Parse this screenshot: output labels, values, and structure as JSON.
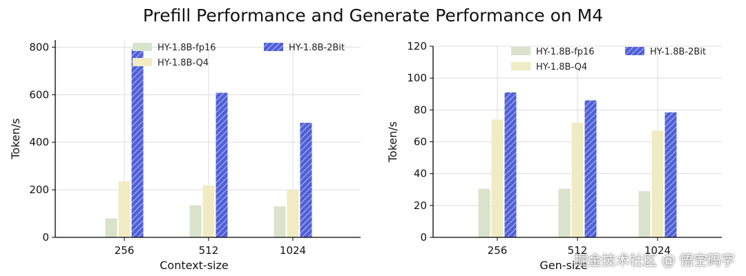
{
  "title": "Prefill Performance and Generate Performance on M4",
  "watermark": "掘金技术社区 @ 悟空码字",
  "colors": {
    "fp16": "#d9e3cc",
    "q4": "#f0ebc2",
    "bit2": "#5060d8",
    "bit2_hatch": "#ffffff",
    "grid": "#dcdcdc",
    "axis": "#000000"
  },
  "chart_data": [
    {
      "type": "bar",
      "title": "",
      "xlabel": "Context-size",
      "ylabel": "Token/s",
      "categories": [
        "256",
        "512",
        "1024"
      ],
      "ylim": [
        0,
        830
      ],
      "yticks": [
        0,
        200,
        400,
        600,
        800
      ],
      "grid": true,
      "legend_position": "top",
      "series": [
        {
          "name": "HY-1.8B-fp16",
          "key": "fp16",
          "values": [
            80,
            135,
            130
          ]
        },
        {
          "name": "HY-1.8B-Q4",
          "key": "q4",
          "values": [
            235,
            218,
            200
          ]
        },
        {
          "name": "HY-1.8B-2Bit",
          "key": "bit2",
          "hatch": true,
          "values": [
            792,
            608,
            482
          ]
        }
      ]
    },
    {
      "type": "bar",
      "title": "",
      "xlabel": "Gen-size",
      "ylabel": "Token/s",
      "categories": [
        "256",
        "512",
        "1024"
      ],
      "ylim": [
        0,
        120
      ],
      "yticks": [
        0,
        20,
        40,
        60,
        80,
        100,
        120
      ],
      "grid": true,
      "legend_position": "top",
      "series": [
        {
          "name": "HY-1.8B-fp16",
          "key": "fp16",
          "values": [
            30.5,
            30.5,
            29
          ]
        },
        {
          "name": "HY-1.8B-Q4",
          "key": "q4",
          "values": [
            74,
            72,
            67
          ]
        },
        {
          "name": "HY-1.8B-2Bit",
          "key": "bit2",
          "hatch": true,
          "values": [
            91,
            86,
            78.5
          ]
        }
      ]
    }
  ]
}
